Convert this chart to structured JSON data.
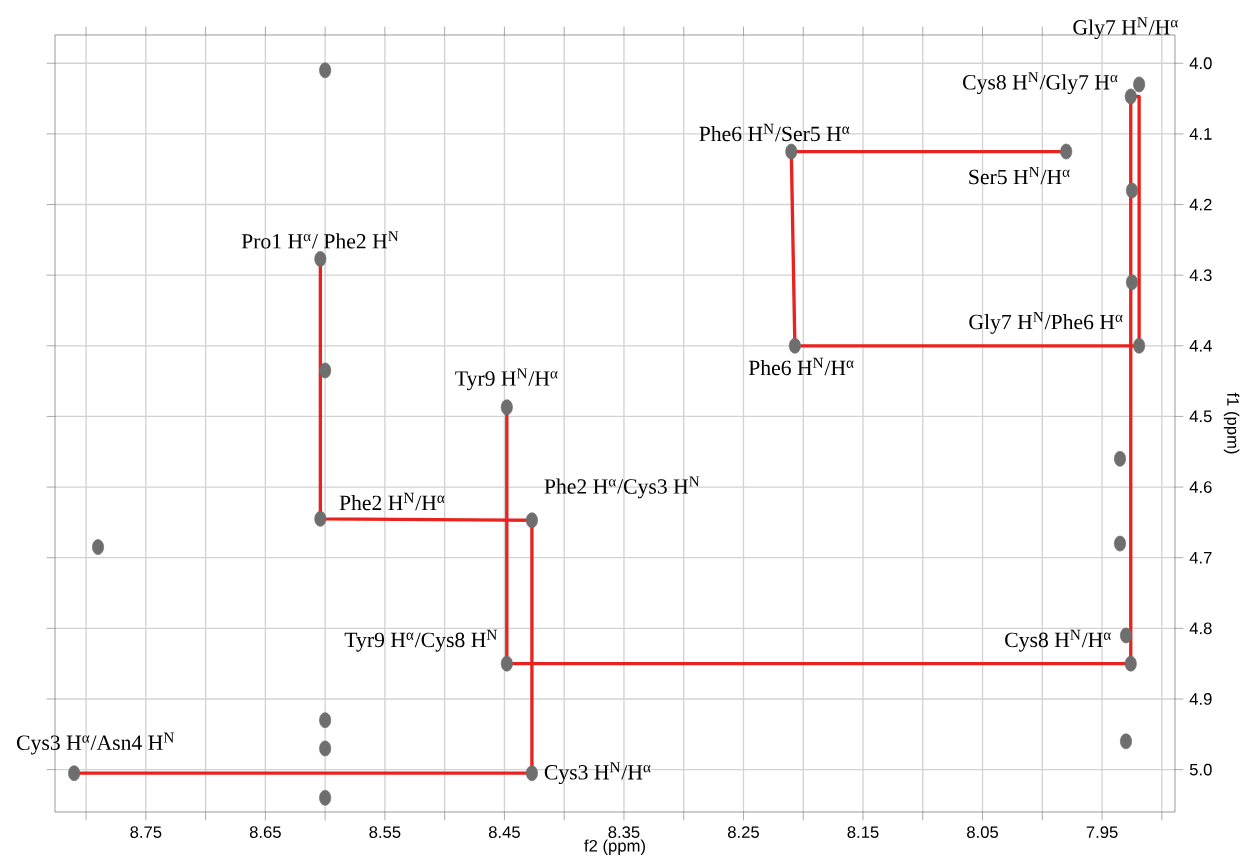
{
  "chart_data": {
    "type": "scatter",
    "xlabel": "f2 (ppm)",
    "ylabel": "f1 (ppm)",
    "xlim": [
      8.826,
      7.889
    ],
    "ylim": [
      5.06,
      3.96
    ],
    "xticks": [
      {
        "value": 8.8,
        "label": null
      },
      8.75,
      {
        "value": 8.7,
        "label": null
      },
      8.65,
      {
        "value": 8.6,
        "label": null
      },
      8.55,
      {
        "value": 8.5,
        "label": null
      },
      8.45,
      {
        "value": 8.4,
        "label": null
      },
      8.35,
      {
        "value": 8.3,
        "label": null
      },
      8.25,
      {
        "value": 8.2,
        "label": null
      },
      8.15,
      {
        "value": 8.1,
        "label": null
      },
      8.05,
      {
        "value": 8.0,
        "label": null
      },
      7.95,
      {
        "value": 7.9,
        "label": null
      }
    ],
    "yticks": [
      {
        "value": 4.0,
        "label": "4.0"
      },
      4.1,
      4.2,
      4.3,
      4.4,
      4.5,
      4.6,
      4.7,
      4.8,
      4.9,
      {
        "value": 5.0,
        "label": "5.0"
      }
    ],
    "grid": true,
    "marker": "circle",
    "line_style": "solid",
    "series": [
      {
        "color": "#6e6e6e",
        "x": [
          7.919,
          7.926,
          8.21,
          7.98,
          8.604,
          8.448,
          8.604,
          8.427,
          8.207,
          7.919,
          8.448,
          7.926,
          8.81,
          8.427,
          8.6,
          8.6,
          8.6,
          8.6,
          8.6,
          8.79,
          7.925,
          7.925,
          7.935,
          7.935,
          7.93,
          7.93
        ],
        "values": [
          4.03,
          4.047,
          4.125,
          4.125,
          4.277,
          4.487,
          4.645,
          4.647,
          4.4,
          4.4,
          4.85,
          4.85,
          5.005,
          5.005,
          4.01,
          4.435,
          4.93,
          4.97,
          5.04,
          4.685,
          4.18,
          4.31,
          4.56,
          4.68,
          4.81,
          4.96
        ]
      },
      {
        "type": "line",
        "color": "#e8231f",
        "marker": "none",
        "x": [
          8.604,
          8.604,
          8.427,
          8.427,
          8.81
        ],
        "values": [
          4.277,
          4.645,
          4.647,
          5.005,
          5.005
        ]
      },
      {
        "type": "line",
        "color": "#e8231f",
        "marker": "none",
        "x": [
          8.448,
          8.448,
          7.926,
          7.926,
          7.919,
          7.919,
          8.207,
          8.21,
          7.98
        ],
        "values": [
          4.487,
          4.85,
          4.85,
          4.047,
          4.047,
          4.4,
          4.4,
          4.125,
          4.125
        ]
      }
    ],
    "annotations": [
      {
        "text": "Gly7 H$^{N}$/H$^{α}$",
        "x": 7.919,
        "y": 4.03
      },
      {
        "text": "Cys8 H$^{N}$/Gly7 H$^{α}$",
        "x": 7.926,
        "y": 4.047
      },
      {
        "text": "Phe6 H$^{N}$/Ser5 H$^{α}$",
        "x": 8.21,
        "y": 4.125
      },
      {
        "text": "Ser5 H$^{N}$/H$^{α}$",
        "x": 7.98,
        "y": 4.125
      },
      {
        "text": "Pro1 H$^{α}$/ Phe2 H$^{N}$",
        "x": 8.604,
        "y": 4.277
      },
      {
        "text": "Tyr9 H$^{N}$/H$^{α}$",
        "x": 8.448,
        "y": 4.487
      },
      {
        "text": "Phe2 H$^{N}$/H$^{α}$",
        "x": 8.604,
        "y": 4.645
      },
      {
        "text": "Phe2 H$^{α}$/Cys3 H$^{N}$",
        "x": 8.427,
        "y": 4.647
      },
      {
        "text": "Phe6 H$^{N}$/H$^{α}$",
        "x": 8.207,
        "y": 4.4
      },
      {
        "text": "Gly7 H$^{N}$/Phe6 H$^{α}$",
        "x": 7.919,
        "y": 4.4
      },
      {
        "text": "Tyr9 H$^{α}$/Cys8 H$^{N}$",
        "x": 8.448,
        "y": 4.85
      },
      {
        "text": "Cys8 H$^{N}$/H$^{α}$",
        "x": 7.926,
        "y": 4.85
      },
      {
        "text": "Cys3 H$^{α}$/Asn4 H$^{N}$",
        "x": 8.81,
        "y": 5.005
      },
      {
        "text": "Cys3 H$^{N}$/H$^{α}$",
        "x": 8.427,
        "y": 5.005
      }
    ]
  }
}
